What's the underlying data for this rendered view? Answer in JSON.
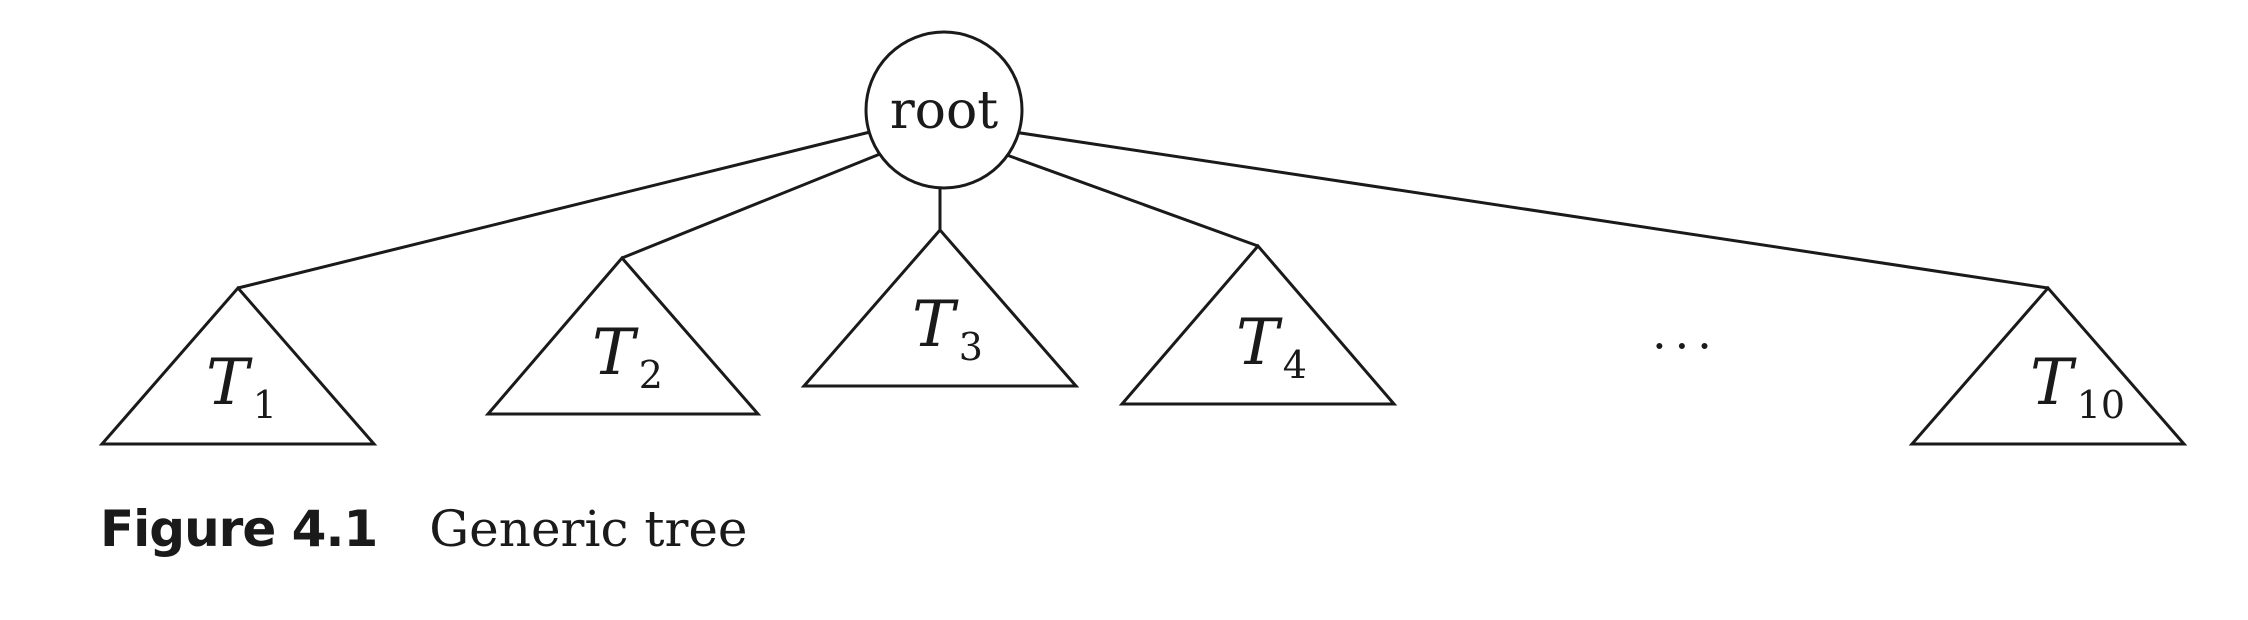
{
  "diagram": {
    "root": {
      "label": "root"
    },
    "subtrees": [
      {
        "main": "T",
        "sub": "1"
      },
      {
        "main": "T",
        "sub": "2"
      },
      {
        "main": "T",
        "sub": "3"
      },
      {
        "main": "T",
        "sub": "4"
      },
      {
        "main": "T",
        "sub": "10"
      }
    ],
    "ellipsis": "···"
  },
  "caption": {
    "label": "Figure 4.1",
    "text": "Generic tree"
  }
}
